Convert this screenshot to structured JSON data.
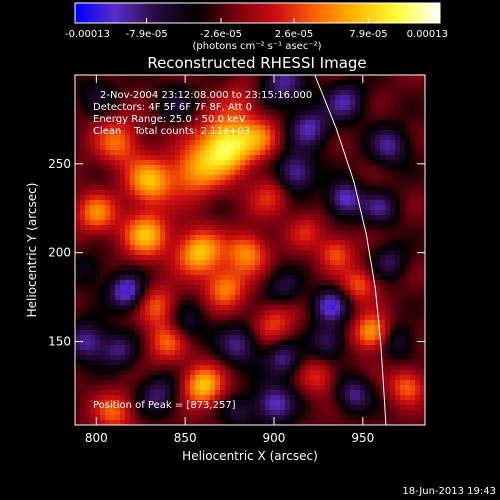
{
  "chart_data": {
    "type": "heatmap",
    "title": "Reconstructed RHESSI Image",
    "xlabel": "Heliocentric X (arcsec)",
    "ylabel": "Heliocentric Y (arcsec)",
    "xlim": [
      788,
      985
    ],
    "ylim": [
      103,
      300
    ],
    "x_ticks": [
      800,
      850,
      900,
      950
    ],
    "y_ticks": [
      150,
      200,
      250
    ],
    "colorbar": {
      "ticks": [
        "-0.00013",
        "-7.9e-05",
        "-2.6e-05",
        "2.6e-05",
        "7.9e-05",
        "0.00013"
      ],
      "tick_values": [
        -0.00013,
        -7.9e-05,
        -2.6e-05,
        2.6e-05,
        7.9e-05,
        0.00013
      ],
      "range": [
        -0.00013,
        0.00013
      ],
      "unit_label": "(photons cm⁻² s⁻¹ asec⁻²)",
      "stops": [
        "#0000ff",
        "#5a2cc8",
        "#2a0a40",
        "#000000",
        "#7a0010",
        "#d01010",
        "#ff6a00",
        "#ffc000",
        "#ffff40",
        "#ffffff"
      ]
    },
    "annotations": [
      "2-Nov-2004 23:12:08.000 to 23:15:16.000",
      "Detectors: 4F 5F 6F 7F 8F, Att 0",
      "Energy Range: 25.0 - 50.0 keV",
      "Clean    Total counts: 2.11e+03"
    ],
    "peak_label": "Position of Peak = [873,257]",
    "peak": [
      873,
      257
    ],
    "limb_points": [
      [
        923,
        300
      ],
      [
        935,
        270
      ],
      [
        945,
        240
      ],
      [
        952,
        210
      ],
      [
        957,
        180
      ],
      [
        960,
        150
      ],
      [
        962,
        120
      ],
      [
        963,
        103
      ]
    ],
    "blobs": [
      {
        "x": 873,
        "y": 260,
        "a": 1.0,
        "s": 11
      },
      {
        "x": 855,
        "y": 245,
        "a": 0.55,
        "s": 10
      },
      {
        "x": 812,
        "y": 262,
        "a": 0.5,
        "s": 9
      },
      {
        "x": 830,
        "y": 240,
        "a": 0.7,
        "s": 9
      },
      {
        "x": 800,
        "y": 222,
        "a": 0.55,
        "s": 8
      },
      {
        "x": 828,
        "y": 210,
        "a": 0.7,
        "s": 9
      },
      {
        "x": 858,
        "y": 200,
        "a": 0.75,
        "s": 9
      },
      {
        "x": 885,
        "y": 200,
        "a": 0.6,
        "s": 8
      },
      {
        "x": 873,
        "y": 180,
        "a": 0.55,
        "s": 8
      },
      {
        "x": 835,
        "y": 170,
        "a": 0.45,
        "s": 8
      },
      {
        "x": 893,
        "y": 265,
        "a": 0.4,
        "s": 8
      },
      {
        "x": 898,
        "y": 232,
        "a": 0.35,
        "s": 8
      },
      {
        "x": 918,
        "y": 212,
        "a": 0.3,
        "s": 7
      },
      {
        "x": 935,
        "y": 200,
        "a": 0.45,
        "s": 7
      },
      {
        "x": 948,
        "y": 182,
        "a": 0.45,
        "s": 7
      },
      {
        "x": 955,
        "y": 155,
        "a": 0.7,
        "s": 7
      },
      {
        "x": 975,
        "y": 125,
        "a": 0.5,
        "s": 7
      },
      {
        "x": 860,
        "y": 125,
        "a": 0.75,
        "s": 8
      },
      {
        "x": 840,
        "y": 150,
        "a": 0.5,
        "s": 8
      },
      {
        "x": 900,
        "y": 160,
        "a": 0.4,
        "s": 8
      },
      {
        "x": 810,
        "y": 110,
        "a": 0.45,
        "s": 8
      },
      {
        "x": 925,
        "y": 130,
        "a": 0.35,
        "s": 7
      },
      {
        "x": 882,
        "y": 285,
        "a": 0.25,
        "s": 8
      },
      {
        "x": 905,
        "y": 295,
        "a": -0.5,
        "s": 9
      },
      {
        "x": 920,
        "y": 270,
        "a": -0.55,
        "s": 8
      },
      {
        "x": 912,
        "y": 245,
        "a": -0.6,
        "s": 8
      },
      {
        "x": 940,
        "y": 230,
        "a": -0.65,
        "s": 7
      },
      {
        "x": 940,
        "y": 285,
        "a": -0.5,
        "s": 8
      },
      {
        "x": 965,
        "y": 260,
        "a": -0.5,
        "s": 8
      },
      {
        "x": 960,
        "y": 225,
        "a": -0.45,
        "s": 7
      },
      {
        "x": 932,
        "y": 170,
        "a": -0.6,
        "s": 7
      },
      {
        "x": 965,
        "y": 195,
        "a": -0.4,
        "s": 7
      },
      {
        "x": 905,
        "y": 180,
        "a": -0.35,
        "s": 7
      },
      {
        "x": 817,
        "y": 178,
        "a": -0.7,
        "s": 7
      },
      {
        "x": 795,
        "y": 150,
        "a": -0.55,
        "s": 8
      },
      {
        "x": 813,
        "y": 145,
        "a": -0.45,
        "s": 7
      },
      {
        "x": 850,
        "y": 160,
        "a": -0.35,
        "s": 8
      },
      {
        "x": 880,
        "y": 148,
        "a": -0.5,
        "s": 8
      },
      {
        "x": 905,
        "y": 140,
        "a": -0.5,
        "s": 7
      },
      {
        "x": 930,
        "y": 150,
        "a": -0.45,
        "s": 7
      },
      {
        "x": 900,
        "y": 115,
        "a": -0.6,
        "s": 8
      },
      {
        "x": 945,
        "y": 120,
        "a": -0.5,
        "s": 7
      },
      {
        "x": 835,
        "y": 120,
        "a": -0.45,
        "s": 8
      },
      {
        "x": 880,
        "y": 110,
        "a": -0.3,
        "s": 7
      },
      {
        "x": 970,
        "y": 150,
        "a": -0.35,
        "s": 7
      },
      {
        "x": 795,
        "y": 190,
        "a": -0.25,
        "s": 7
      },
      {
        "x": 845,
        "y": 285,
        "a": -0.25,
        "s": 8
      },
      {
        "x": 800,
        "y": 290,
        "a": -0.25,
        "s": 8
      }
    ]
  },
  "footer": {
    "date": "18-Jun-2013 19:43"
  }
}
